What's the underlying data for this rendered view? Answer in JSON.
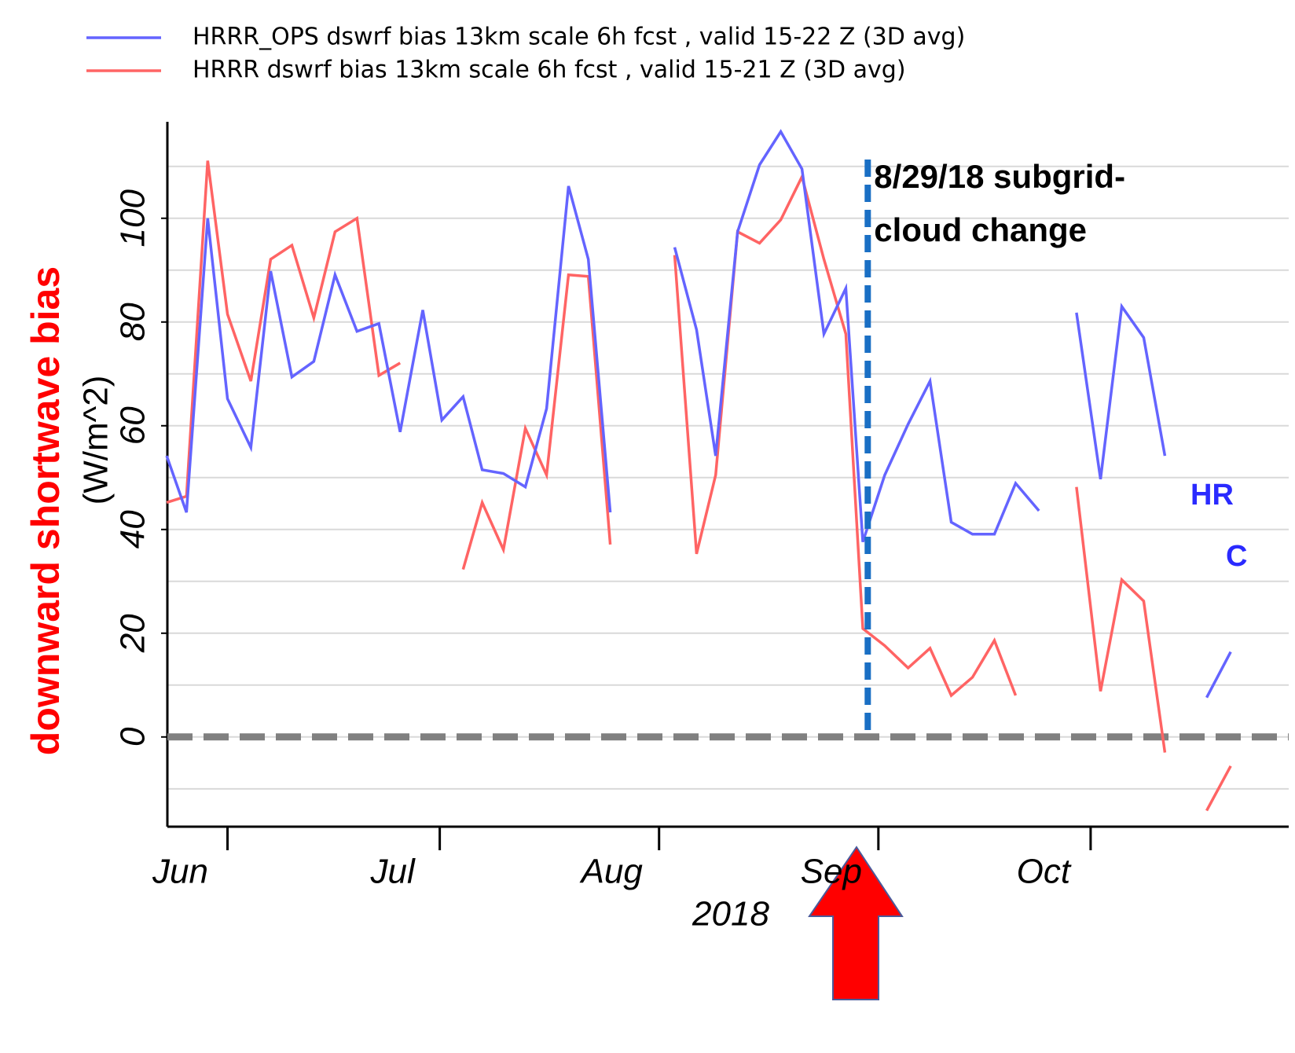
{
  "chart_data": {
    "type": "line",
    "xlabel": "2018",
    "ylabel": "downward shortwave bias",
    "ylabel_sub": "(W/m^2)",
    "x": [
      143.4,
      146.2,
      149.2,
      152,
      155.3,
      158.1,
      161.1,
      164.2,
      167.2,
      170.3,
      173.4,
      176.4,
      179.6,
      182.3,
      185.3,
      188,
      191,
      194.1,
      197.1,
      200.2,
      203,
      206.1,
      209.1,
      215.2,
      218.3,
      221,
      224.1,
      227.2,
      230.2,
      233.2,
      236.3,
      239.4,
      241.8,
      244.9,
      248.2,
      251.3,
      254.3,
      257.3,
      260.4,
      263.4,
      266.7,
      269.5,
      272,
      275.4,
      278.4,
      281.5,
      284.5,
      287.5,
      290.4,
      293.8
    ],
    "series": [
      {
        "name": "HRRR_OPS dswrf bias 13km scale 6h fcst , valid 15-22 Z (3D avg)",
        "color": "#6464ff",
        "values": [
          54.2,
          43.3,
          100,
          65.2,
          55.8,
          89.8,
          69.4,
          72.4,
          89.1,
          78.2,
          79.7,
          58.8,
          82.3,
          61.1,
          65.6,
          51.5,
          50.8,
          48.2,
          63.3,
          106.2,
          92.1,
          43.3,
          null,
          94.4,
          78.5,
          54.2,
          97.4,
          110.3,
          116.7,
          109.5,
          77.7,
          86.5,
          37.6,
          50.5,
          60.3,
          68.6,
          41.4,
          39.1,
          39.1,
          48.9,
          43.6,
          null,
          81.8,
          49.7,
          83.0,
          77.0,
          54.2,
          null,
          7.6,
          16.4
        ]
      },
      {
        "name": "HRRR dswrf bias 13km scale 6h fcst , valid 15-21 Z (3D avg)",
        "color": "#ff6464",
        "values": [
          45.2,
          46.4,
          111.1,
          81.5,
          68.6,
          92.1,
          94.8,
          80.8,
          97.4,
          100,
          69.7,
          72.1,
          null,
          null,
          32.3,
          45.2,
          36.1,
          59.5,
          50.5,
          89.1,
          88.8,
          37.1,
          null,
          92.9,
          35.3,
          50.5,
          97.4,
          95.2,
          99.7,
          108,
          92.1,
          77.7,
          20.9,
          17.6,
          13.3,
          17.1,
          8.0,
          11.5,
          18.6,
          8.0,
          null,
          null,
          48.2,
          8.8,
          30.3,
          26.2,
          -3.0,
          null,
          -14.2,
          -5.6
        ]
      }
    ],
    "xlim": [
      143.5,
      302
    ],
    "xticks": [
      {
        "value": 152,
        "label": "Jun"
      },
      {
        "value": 182,
        "label": "Jul"
      },
      {
        "value": 213,
        "label": "Aug"
      },
      {
        "value": 244,
        "label": "Sep"
      },
      {
        "value": 274,
        "label": "Oct"
      }
    ],
    "ylim": [
      -17.3,
      118.6
    ],
    "yticks": [
      0,
      20,
      40,
      60,
      80,
      100
    ],
    "yminor": [
      -10,
      10,
      30,
      50,
      70,
      90,
      110
    ],
    "grid": true,
    "hline": {
      "y": 0,
      "color": "#808080"
    },
    "vline": {
      "x": 242.5,
      "color": "#1a6fc4"
    },
    "annotations": [
      {
        "text": "8/29/18 subgrid-",
        "color": "#000000"
      },
      {
        "text": "cloud change",
        "color": "#000000"
      },
      {
        "text": "HR",
        "color": "#2a2aff"
      },
      {
        "text": "C",
        "color": "#2a2aff"
      }
    ],
    "legend": "top-left"
  }
}
